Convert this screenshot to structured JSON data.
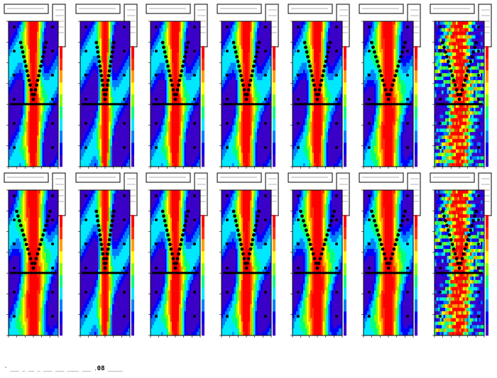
{
  "colors": {
    "palette": [
      "#3b00c8",
      "#0000ff",
      "#0080ff",
      "#00e8ff",
      "#00ff80",
      "#80ff00",
      "#ffff00",
      "#ffa000",
      "#ff3000",
      "#ff0000"
    ],
    "marker": "#000000",
    "frame": "#000000"
  },
  "chart_data": [
    {
      "type": "heatmap",
      "panel": "row1-col1",
      "overlay": "v-markers",
      "spread": "medium"
    },
    {
      "type": "heatmap",
      "panel": "row1-col2",
      "overlay": "v-markers",
      "spread": "narrow"
    },
    {
      "type": "heatmap",
      "panel": "row1-col3",
      "overlay": "v-markers",
      "spread": "medium"
    },
    {
      "type": "heatmap",
      "panel": "row1-col4",
      "overlay": "v-markers",
      "spread": "medium"
    },
    {
      "type": "heatmap",
      "panel": "row1-col5",
      "overlay": "v-markers",
      "spread": "medium"
    },
    {
      "type": "heatmap",
      "panel": "row1-col6",
      "overlay": "v-markers",
      "spread": "wide"
    },
    {
      "type": "heatmap",
      "panel": "row1-col7",
      "overlay": "v-markers",
      "spread": "noisy"
    },
    {
      "type": "heatmap",
      "panel": "row2-col1",
      "overlay": "v-markers",
      "spread": "wide"
    },
    {
      "type": "heatmap",
      "panel": "row2-col2",
      "overlay": "v-markers",
      "spread": "narrow"
    },
    {
      "type": "heatmap",
      "panel": "row2-col3",
      "overlay": "v-markers",
      "spread": "medium"
    },
    {
      "type": "heatmap",
      "panel": "row2-col4",
      "overlay": "v-markers",
      "spread": "medium"
    },
    {
      "type": "heatmap",
      "panel": "row2-col5",
      "overlay": "v-markers",
      "spread": "wide"
    },
    {
      "type": "heatmap",
      "panel": "row2-col6",
      "overlay": "v-markers",
      "spread": "wide"
    },
    {
      "type": "heatmap",
      "panel": "row2-col7",
      "overlay": "v-markers",
      "spread": "noisy"
    }
  ],
  "footer": {
    "prefix": "' ___ _ __ _ ___ ___ ____ ___ .",
    "code": "08",
    "suffix": " _____"
  }
}
